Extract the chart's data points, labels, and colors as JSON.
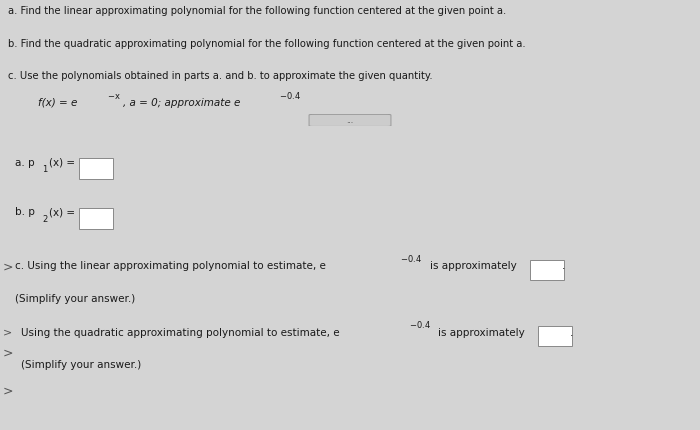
{
  "bg_color": "#d4d4d4",
  "header_bg": "#d4d4d4",
  "body_bg": "#e2e2e2",
  "line1": "a. Find the linear approximating polynomial for the following function centered at the given point a.",
  "line2": "b. Find the quadratic approximating polynomial for the following function centered at the given point a.",
  "line3": "c. Use the polynomials obtained in parts a. and b. to approximate the given quantity.",
  "text_color": "#1a1a1a",
  "font_size_header": 7.2,
  "font_size_body": 7.5,
  "font_size_func": 7.5,
  "font_size_small": 6.0,
  "divider_color": "#aaaaaa",
  "box_edge_color": "#888888",
  "chevron_color": "#555555"
}
